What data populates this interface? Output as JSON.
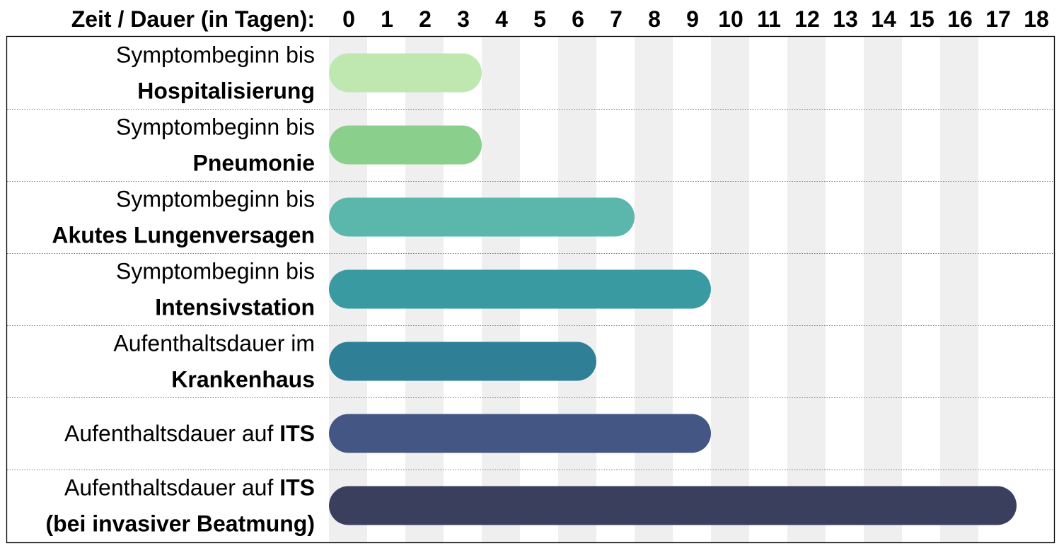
{
  "chart_data": {
    "type": "bar",
    "orientation": "horizontal",
    "title": "",
    "header_label": "Zeit / Dauer (in Tagen):",
    "x_ticks": [
      "0",
      "1",
      "2",
      "3",
      "4",
      "5",
      "6",
      "7",
      "8",
      "9",
      "10",
      "11",
      "12",
      "13",
      "14",
      "15",
      "16",
      "17",
      "18"
    ],
    "xlim": [
      0,
      18
    ],
    "grid": "alternating vertical bands",
    "rows": [
      {
        "label_lines": [
          [
            {
              "text": "Symptombeginn bis",
              "bold": false
            }
          ],
          [
            {
              "text": "Hospitalisierung",
              "bold": true
            }
          ]
        ],
        "value": 4,
        "color": "#bfe8b0"
      },
      {
        "label_lines": [
          [
            {
              "text": "Symptombeginn bis",
              "bold": false
            }
          ],
          [
            {
              "text": "Pneumonie",
              "bold": true
            }
          ]
        ],
        "value": 4,
        "color": "#8ad08c"
      },
      {
        "label_lines": [
          [
            {
              "text": "Symptombeginn bis",
              "bold": false
            }
          ],
          [
            {
              "text": "Akutes Lungenversagen",
              "bold": true
            }
          ]
        ],
        "value": 8,
        "color": "#5bb6ab"
      },
      {
        "label_lines": [
          [
            {
              "text": "Symptombeginn bis",
              "bold": false
            }
          ],
          [
            {
              "text": "Intensivstation",
              "bold": true
            }
          ]
        ],
        "value": 10,
        "color": "#3a9aa2"
      },
      {
        "label_lines": [
          [
            {
              "text": "Aufenthaltsdauer im",
              "bold": false
            }
          ],
          [
            {
              "text": "Krankenhaus",
              "bold": true
            }
          ]
        ],
        "value": 7,
        "color": "#2f7f97"
      },
      {
        "label_lines": [
          [
            {
              "text": "Aufenthaltsdauer auf ",
              "bold": false
            },
            {
              "text": "ITS",
              "bold": true
            }
          ]
        ],
        "value": 10,
        "color": "#445784"
      },
      {
        "label_lines": [
          [
            {
              "text": "Aufenthaltsdauer auf ",
              "bold": false
            },
            {
              "text": "ITS",
              "bold": true
            }
          ],
          [
            {
              "text": "(bei invasiver Beatmung)",
              "bold": true
            }
          ]
        ],
        "value": 18,
        "color": "#3a3f5d"
      }
    ]
  }
}
